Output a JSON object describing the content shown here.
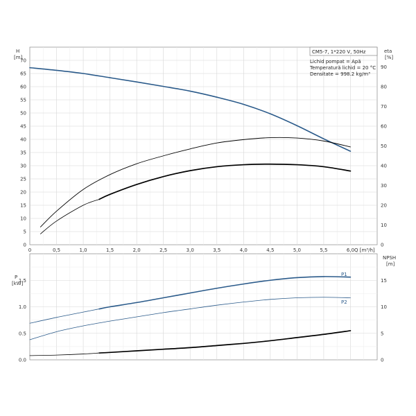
{
  "chart_data": [
    {
      "type": "line",
      "panel": "head",
      "info": {
        "model": "CM5-7, 1*220 V, 50Hz",
        "lines": [
          "Lichid pompat = Apă",
          "Temperatură lichid = 20 °C",
          "Densitate = 998.2 kg/m³"
        ]
      },
      "x_axis": {
        "label": "Q [m³/h]",
        "ticks": [
          "0",
          "0,5",
          "1,0",
          "1,5",
          "2,0",
          "2,5",
          "3,0",
          "3,5",
          "4,0",
          "4,5",
          "5,0",
          "5,5",
          "6,0"
        ],
        "range": [
          0,
          6.5
        ]
      },
      "y_left": {
        "label_top": "H",
        "label_unit": "[m]",
        "ticks": [
          "0",
          "5",
          "10",
          "15",
          "20",
          "25",
          "30",
          "35",
          "40",
          "45",
          "50",
          "55",
          "60",
          "65",
          "70"
        ],
        "range": [
          0,
          75
        ]
      },
      "y_right": {
        "label_top": "eta",
        "label_unit": "[%]",
        "ticks": [
          "0",
          "10",
          "20",
          "30",
          "40",
          "50",
          "60",
          "70",
          "80",
          "90"
        ],
        "range": [
          0,
          100
        ]
      },
      "series": [
        {
          "axis": "left",
          "color": "#2a5a8a",
          "width": 1.6,
          "points": [
            [
              0,
              67.2
            ],
            [
              0.5,
              66.2
            ],
            [
              1.0,
              65.0
            ],
            [
              1.5,
              63.4
            ],
            [
              2.0,
              61.8
            ],
            [
              2.5,
              60.1
            ],
            [
              3.0,
              58.3
            ],
            [
              3.5,
              56.0
            ],
            [
              4.0,
              53.3
            ],
            [
              4.5,
              49.7
            ],
            [
              5.0,
              45.2
            ],
            [
              5.5,
              40.2
            ],
            [
              6.0,
              35.5
            ]
          ]
        },
        {
          "axis": "right",
          "color": "#000000",
          "width": 0.9,
          "points": [
            [
              0.2,
              9.0
            ],
            [
              0.5,
              17.0
            ],
            [
              1.0,
              28.0
            ],
            [
              1.5,
              35.5
            ],
            [
              2.0,
              41.0
            ],
            [
              2.5,
              45.0
            ],
            [
              3.0,
              48.5
            ],
            [
              3.5,
              51.5
            ],
            [
              4.0,
              53.2
            ],
            [
              4.5,
              54.2
            ],
            [
              5.0,
              54.0
            ],
            [
              5.5,
              52.5
            ],
            [
              6.0,
              49.5
            ]
          ]
        },
        {
          "axis": "right",
          "color": "#000000",
          "width": 0.8,
          "points": [
            [
              0.2,
              5.5
            ],
            [
              0.5,
              12.0
            ],
            [
              1.0,
              20.0
            ],
            [
              1.3,
              23.0
            ]
          ]
        },
        {
          "axis": "right",
          "color": "#000000",
          "width": 1.7,
          "points": [
            [
              1.3,
              23.0
            ],
            [
              1.5,
              25.5
            ],
            [
              2.0,
              30.5
            ],
            [
              2.5,
              34.5
            ],
            [
              3.0,
              37.5
            ],
            [
              3.5,
              39.5
            ],
            [
              4.0,
              40.5
            ],
            [
              4.5,
              40.8
            ],
            [
              5.0,
              40.5
            ],
            [
              5.5,
              39.5
            ],
            [
              6.0,
              37.3
            ]
          ]
        }
      ]
    },
    {
      "type": "line",
      "panel": "power",
      "x_axis": {
        "range": [
          0,
          6.5
        ]
      },
      "y_left": {
        "label_top": "P",
        "label_unit": "[kW]",
        "ticks": [
          "0.0",
          "0.5",
          "1.0",
          "1.5"
        ],
        "range": [
          0,
          2.0
        ]
      },
      "y_right": {
        "label_top": "NPSH",
        "label_unit": "[m]",
        "ticks": [
          "0",
          "5",
          "10",
          "15"
        ],
        "range": [
          0,
          20
        ]
      },
      "series": [
        {
          "name": "P1",
          "axis": "left",
          "color": "#2a5a8a",
          "width": 0.8,
          "points": [
            [
              0,
              0.69
            ],
            [
              0.5,
              0.8
            ],
            [
              1.0,
              0.9
            ],
            [
              1.3,
              0.96
            ]
          ]
        },
        {
          "name": "P1",
          "axis": "left",
          "color": "#2a5a8a",
          "width": 1.6,
          "points": [
            [
              1.3,
              0.96
            ],
            [
              1.5,
              1.0
            ],
            [
              2.0,
              1.08
            ],
            [
              2.5,
              1.17
            ],
            [
              3.0,
              1.26
            ],
            [
              3.5,
              1.35
            ],
            [
              4.0,
              1.43
            ],
            [
              4.5,
              1.5
            ],
            [
              5.0,
              1.55
            ],
            [
              5.5,
              1.57
            ],
            [
              6.0,
              1.56
            ]
          ]
        },
        {
          "name": "P2",
          "axis": "left",
          "color": "#2a5a8a",
          "width": 0.8,
          "points": [
            [
              0,
              0.38
            ],
            [
              0.5,
              0.53
            ],
            [
              1.0,
              0.64
            ],
            [
              1.5,
              0.73
            ],
            [
              2.0,
              0.81
            ],
            [
              2.5,
              0.89
            ],
            [
              3.0,
              0.96
            ],
            [
              3.5,
              1.03
            ],
            [
              4.0,
              1.09
            ],
            [
              4.5,
              1.14
            ],
            [
              5.0,
              1.17
            ],
            [
              5.5,
              1.18
            ],
            [
              6.0,
              1.17
            ]
          ]
        },
        {
          "axis": "right",
          "color": "#000000",
          "width": 0.8,
          "points": [
            [
              0,
              0.8
            ],
            [
              0.5,
              0.9
            ],
            [
              1.0,
              1.1
            ],
            [
              1.3,
              1.3
            ]
          ]
        },
        {
          "axis": "right",
          "color": "#000000",
          "width": 1.7,
          "points": [
            [
              1.3,
              1.3
            ],
            [
              1.5,
              1.4
            ],
            [
              2.0,
              1.7
            ],
            [
              2.5,
              2.0
            ],
            [
              3.0,
              2.3
            ],
            [
              3.5,
              2.7
            ],
            [
              4.0,
              3.1
            ],
            [
              4.5,
              3.6
            ],
            [
              5.0,
              4.2
            ],
            [
              5.5,
              4.8
            ],
            [
              6.0,
              5.5
            ]
          ]
        }
      ],
      "labels": [
        "P1",
        "P2"
      ]
    }
  ]
}
